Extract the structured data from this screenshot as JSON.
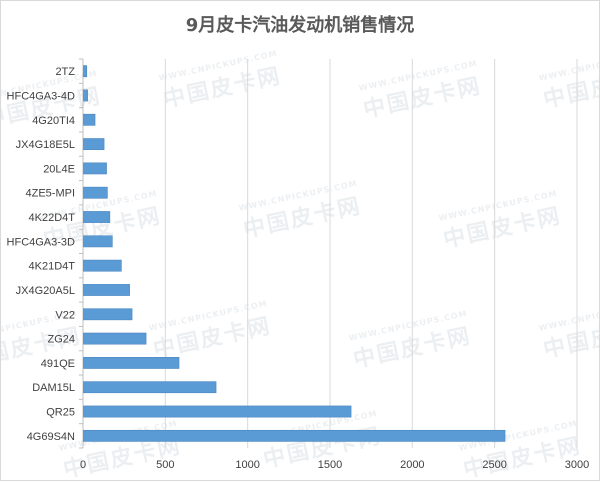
{
  "title": "9月皮卡汽油发动机销售情况",
  "watermark": {
    "text": "中国皮卡网",
    "url_text": "WWW.CNPICKUPS.COM"
  },
  "colors": {
    "bar": "#5b9bd5",
    "bar_edge": "#4a86c1",
    "grid": "#d9d9d9",
    "axis": "#bfbfbf"
  },
  "chart_data": {
    "type": "bar",
    "orientation": "horizontal",
    "title": "9月皮卡汽油发动机销售情况",
    "categories": [
      "2TZ",
      "HFC4GA3-4D",
      "4G20TI4",
      "JX4G18E5L",
      "20L4E",
      "4ZE5-MPI",
      "4K22D4T",
      "HFC4GA3-3D",
      "4K21D4T",
      "JX4G20A5L",
      "V22",
      "ZG24",
      "491QE",
      "DAM15L",
      "QR25",
      "4G69S4N"
    ],
    "values": [
      20,
      25,
      70,
      125,
      140,
      145,
      160,
      175,
      230,
      280,
      295,
      380,
      580,
      805,
      1625,
      2560
    ],
    "xlim": [
      0,
      3000
    ],
    "xticks": [
      "0",
      "500",
      "1000",
      "1500",
      "2000",
      "2500",
      "3000"
    ],
    "grid": true,
    "legend": "none"
  }
}
